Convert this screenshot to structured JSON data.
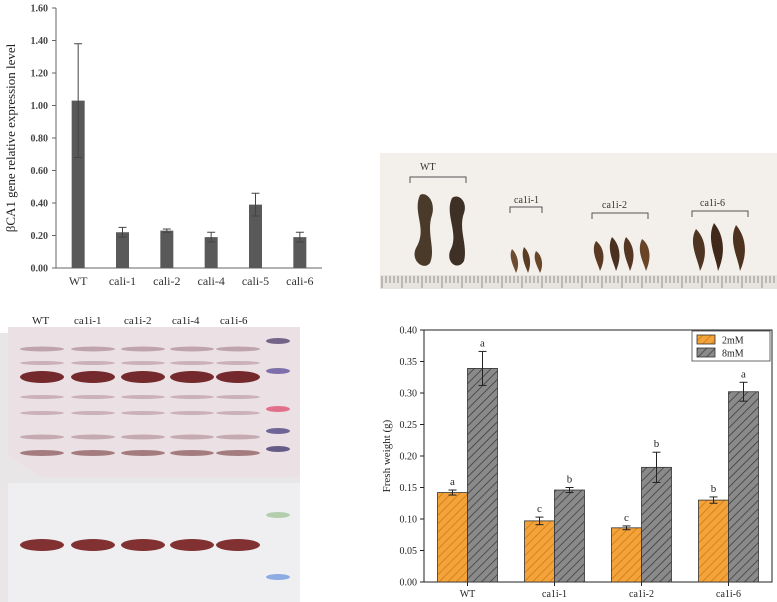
{
  "chart_data": [
    {
      "type": "bar",
      "ylabel": "βCA1 gene relative  expression level",
      "categories": [
        "WT",
        "cali-1",
        "cali-2",
        "cali-4",
        "cali-5",
        "cali-6"
      ],
      "values": [
        1.03,
        0.22,
        0.23,
        0.19,
        0.39,
        0.19
      ],
      "errors": [
        0.35,
        0.03,
        0.01,
        0.03,
        0.07,
        0.03
      ],
      "ylim": [
        0,
        1.6
      ],
      "yticks": [
        "0.00",
        "0.20",
        "0.40",
        "0.60",
        "0.80",
        "1.00",
        "1.20",
        "1.40",
        "1.60"
      ],
      "bar_color": "#595959",
      "grid": false
    },
    {
      "type": "bar",
      "ylabel": "Fresh weight (g)",
      "categories": [
        "WT",
        "ca1i-1",
        "ca1i-2",
        "ca1i-6"
      ],
      "series": [
        {
          "name": "2mM",
          "values": [
            0.142,
            0.097,
            0.086,
            0.13
          ],
          "errors": [
            0.004,
            0.006,
            0.003,
            0.005
          ],
          "letters": [
            "a",
            "c",
            "c",
            "b"
          ],
          "color": "#f4a23a"
        },
        {
          "name": "8mM",
          "values": [
            0.339,
            0.146,
            0.182,
            0.302
          ],
          "errors": [
            0.027,
            0.004,
            0.024,
            0.015
          ],
          "letters": [
            "a",
            "b",
            "b",
            "a"
          ],
          "color": "#8a8a8a"
        }
      ],
      "ylim": [
        0,
        0.4
      ],
      "yticks": [
        "0.00",
        "0.05",
        "0.10",
        "0.15",
        "0.20",
        "0.25",
        "0.30",
        "0.35",
        "0.40"
      ],
      "legend": "top-right",
      "grid": false
    }
  ],
  "photo": {
    "labels": [
      "WT",
      "ca1i-1",
      "ca1i-2",
      "ca1i-6"
    ]
  },
  "blot": {
    "lanes": [
      "WT",
      "ca1i-1",
      "ca1i-2",
      "ca1i-4",
      "ca1i-6"
    ]
  }
}
